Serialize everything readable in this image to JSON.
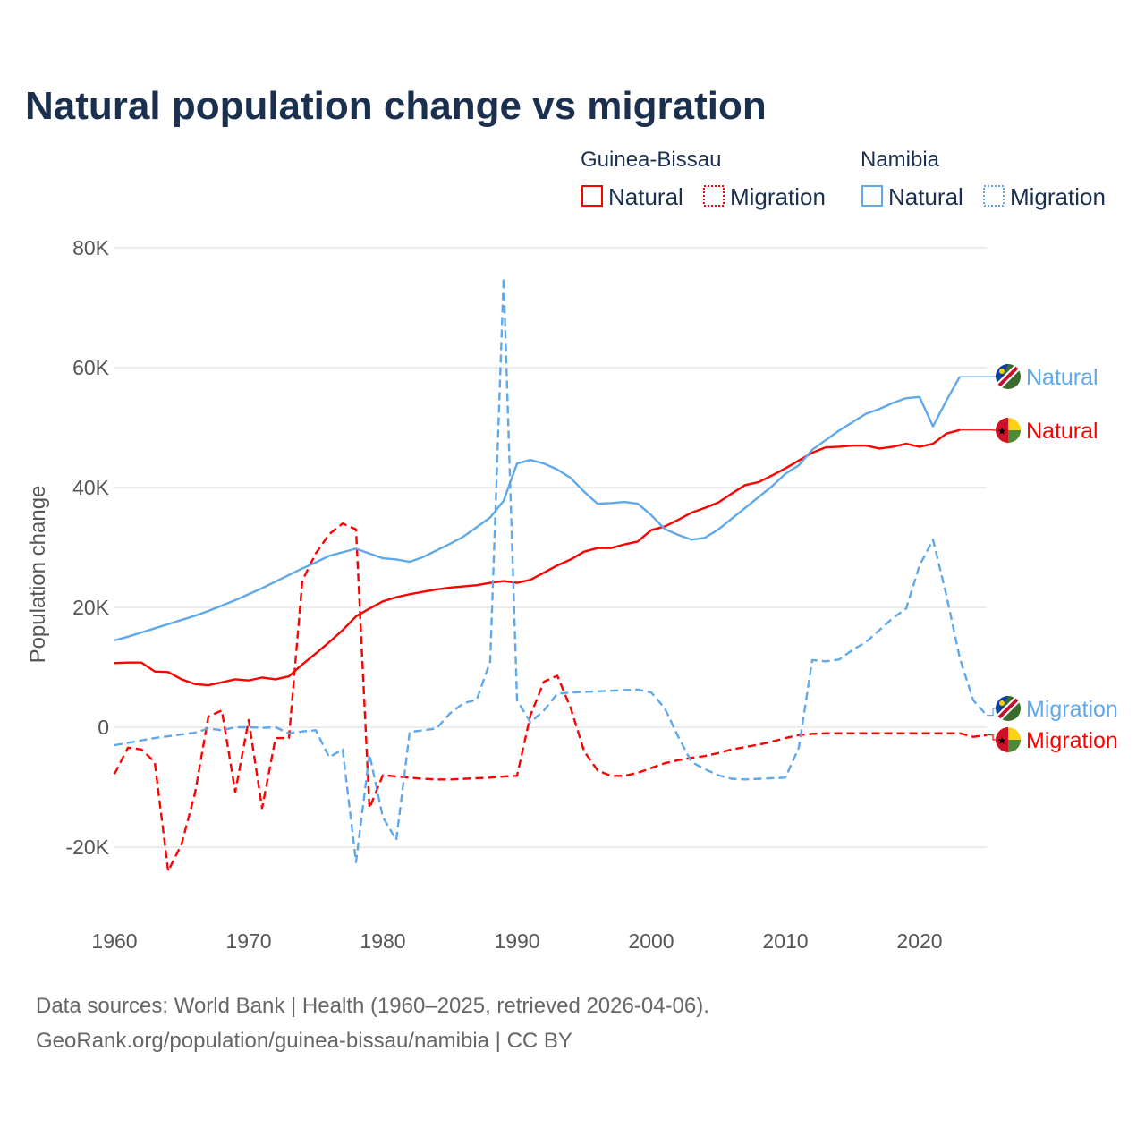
{
  "chart_data": {
    "type": "line",
    "title": "Natural population change vs migration",
    "ylabel": "Population change",
    "xlabel": "",
    "ylim": [
      -30000,
      80000
    ],
    "xlim": [
      1960,
      2025
    ],
    "grid": true,
    "y_ticks": [
      {
        "v": 80000,
        "label": "80K"
      },
      {
        "v": 60000,
        "label": "60K"
      },
      {
        "v": 40000,
        "label": "40K"
      },
      {
        "v": 20000,
        "label": "20K"
      },
      {
        "v": 0,
        "label": "0"
      },
      {
        "v": -20000,
        "label": "-20K"
      }
    ],
    "x_ticks": [
      {
        "v": 1960,
        "label": "1960"
      },
      {
        "v": 1970,
        "label": "1970"
      },
      {
        "v": 1980,
        "label": "1980"
      },
      {
        "v": 1990,
        "label": "1990"
      },
      {
        "v": 2000,
        "label": "2000"
      },
      {
        "v": 2010,
        "label": "2010"
      },
      {
        "v": 2020,
        "label": "2020"
      }
    ],
    "legend": {
      "placement": "top-right",
      "groups": [
        {
          "name": "Guinea-Bissau",
          "items": [
            "Natural",
            "Migration"
          ],
          "color": "#ff0000"
        },
        {
          "name": "Namibia",
          "items": [
            "Natural",
            "Migration"
          ],
          "color": "#5fa8ea"
        }
      ]
    },
    "x_start": 1960,
    "series": [
      {
        "name": "Guinea-Bissau Natural",
        "end_label": "Natural",
        "country": "guinea-bissau",
        "color": "#ff0000",
        "dash": false,
        "values": [
          10700,
          10800,
          10800,
          9300,
          9200,
          8000,
          7200,
          7000,
          7500,
          8000,
          7800,
          8300,
          8000,
          8500,
          10500,
          12300,
          14200,
          16200,
          18500,
          19800,
          21000,
          21700,
          22200,
          22600,
          23000,
          23300,
          23500,
          23700,
          24100,
          24400,
          24100,
          24600,
          25800,
          27000,
          28000,
          29300,
          29900,
          29900,
          30500,
          31000,
          32900,
          33500,
          34600,
          35800,
          36600,
          37500,
          39000,
          40400,
          40900,
          42000,
          43200,
          44500,
          45800,
          46700,
          46800,
          47000,
          47000,
          46500,
          46800,
          47300,
          46800,
          47300,
          49000,
          49600
        ]
      },
      {
        "name": "Guinea-Bissau Migration",
        "end_label": "Migration",
        "country": "guinea-bissau",
        "color": "#ff0000",
        "dash": true,
        "values": [
          -7800,
          -3400,
          -3700,
          -5800,
          -24000,
          -19500,
          -11000,
          1800,
          2800,
          -10800,
          1200,
          -13500,
          -1800,
          -1800,
          24500,
          29000,
          32200,
          34000,
          33000,
          -13500,
          -8000,
          -8200,
          -8400,
          -8600,
          -8700,
          -8700,
          -8600,
          -8500,
          -8400,
          -8200,
          -8100,
          2000,
          7600,
          8600,
          3200,
          -4000,
          -7200,
          -8100,
          -8100,
          -7600,
          -6800,
          -6000,
          -5500,
          -5100,
          -4800,
          -4300,
          -3700,
          -3300,
          -2900,
          -2400,
          -1800,
          -1300,
          -1100,
          -1000,
          -1000,
          -1000,
          -1000,
          -1000,
          -1000,
          -1000,
          -1000,
          -1000,
          -1000,
          -1000,
          -1600,
          -1300
        ]
      },
      {
        "name": "Namibia Natural",
        "end_label": "Natural",
        "country": "namibia",
        "color": "#5fa8ea",
        "dash": false,
        "values": [
          14500,
          15100,
          15800,
          16500,
          17200,
          17900,
          18600,
          19400,
          20300,
          21200,
          22200,
          23200,
          24300,
          25400,
          26500,
          27500,
          28600,
          29200,
          29800,
          29000,
          28200,
          28000,
          27600,
          28400,
          29500,
          30600,
          31800,
          33400,
          35000,
          37800,
          44000,
          44600,
          44000,
          43000,
          41600,
          39300,
          37300,
          37400,
          37600,
          37300,
          35400,
          33100,
          32100,
          31300,
          31600,
          33000,
          34800,
          36600,
          38400,
          40200,
          42300,
          43700,
          46300,
          47900,
          49500,
          50900,
          52300,
          53100,
          54100,
          54900,
          55100,
          50200,
          54500,
          58500
        ]
      },
      {
        "name": "Namibia Migration",
        "end_label": "Migration",
        "country": "namibia",
        "color": "#5fa8ea",
        "dash": true,
        "values": [
          -3000,
          -2600,
          -2200,
          -1800,
          -1500,
          -1200,
          -900,
          -200,
          -500,
          0,
          0,
          -100,
          0,
          -1000,
          -700,
          -500,
          -5000,
          -3700,
          -22500,
          -4500,
          -15000,
          -18800,
          -800,
          -500,
          -200,
          2300,
          4000,
          4600,
          11000,
          75000,
          4500,
          800,
          2800,
          5600,
          5800,
          5900,
          6000,
          6100,
          6200,
          6300,
          5800,
          3200,
          -1500,
          -5800,
          -7000,
          -8000,
          -8600,
          -8700,
          -8600,
          -8500,
          -8400,
          -3400,
          11200,
          11000,
          11300,
          12900,
          14200,
          16200,
          18200,
          19800,
          27000,
          31300,
          22000,
          11500,
          4500,
          2000
        ]
      }
    ]
  },
  "footer": {
    "line1": "Data sources: World Bank | Health (1960–2025, retrieved 2026-04-06).",
    "line2": "GeoRank.org/population/guinea-bissau/namibia | CC BY"
  }
}
